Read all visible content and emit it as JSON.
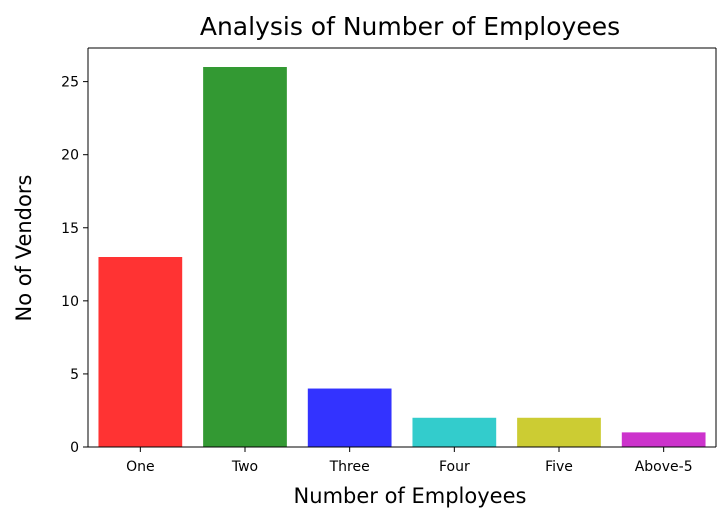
{
  "chart_data": {
    "type": "bar",
    "title": "Analysis of Number of Employees",
    "xlabel": "Number of Employees",
    "ylabel": "No of Vendors",
    "categories": [
      "One",
      "Two",
      "Three",
      "Four",
      "Five",
      "Above-5"
    ],
    "values": [
      13,
      26,
      4,
      2,
      2,
      1
    ],
    "colors": [
      "#ff3333",
      "#339933",
      "#3333ff",
      "#33cccc",
      "#cccc33",
      "#cc33cc"
    ],
    "ylim": [
      0,
      27.3
    ],
    "yticks": [
      0,
      5,
      10,
      15,
      20,
      25
    ],
    "grid": false,
    "legend": false
  }
}
